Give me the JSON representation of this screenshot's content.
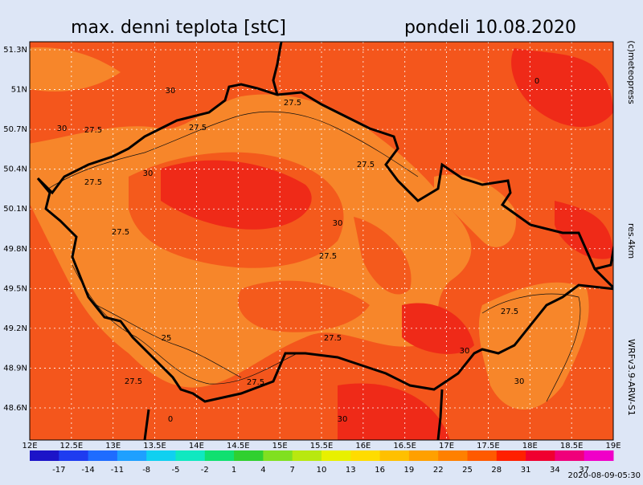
{
  "header": {
    "title": "max. denni teplota [stC]",
    "date": "pondeli 10.08.2020"
  },
  "side": {
    "credit": "(c)meteopress",
    "resolution": "res.4km",
    "model": "WRFv3.9-ARW-S1"
  },
  "axes": {
    "lat": [
      "51.3N",
      "51N",
      "50.7N",
      "50.4N",
      "50.1N",
      "49.8N",
      "49.5N",
      "49.2N",
      "48.9N",
      "48.6N"
    ],
    "lon": [
      "12E",
      "12.5E",
      "13E",
      "13.5E",
      "14E",
      "14.5E",
      "15E",
      "15.5E",
      "16E",
      "16.5E",
      "17E",
      "17.5E",
      "18E",
      "18.5E",
      "19E"
    ]
  },
  "contour_labels": [
    "30",
    "27.5",
    "27.5",
    "30",
    "27.5",
    "30",
    "27.5",
    "27.5",
    "27.5",
    "30",
    "27.5",
    "25",
    "27.5",
    "27.5",
    "27.5",
    "30",
    "30",
    "30",
    "27.5",
    "0",
    "0"
  ],
  "colorbar": {
    "labels": [
      "-17",
      "-14",
      "-11",
      "-8",
      "-5",
      "-2",
      "1",
      "4",
      "7",
      "10",
      "13",
      "16",
      "19",
      "22",
      "25",
      "28",
      "31",
      "34",
      "37"
    ]
  },
  "footer": {
    "timestamp": "2020-08-09-05:30"
  }
}
